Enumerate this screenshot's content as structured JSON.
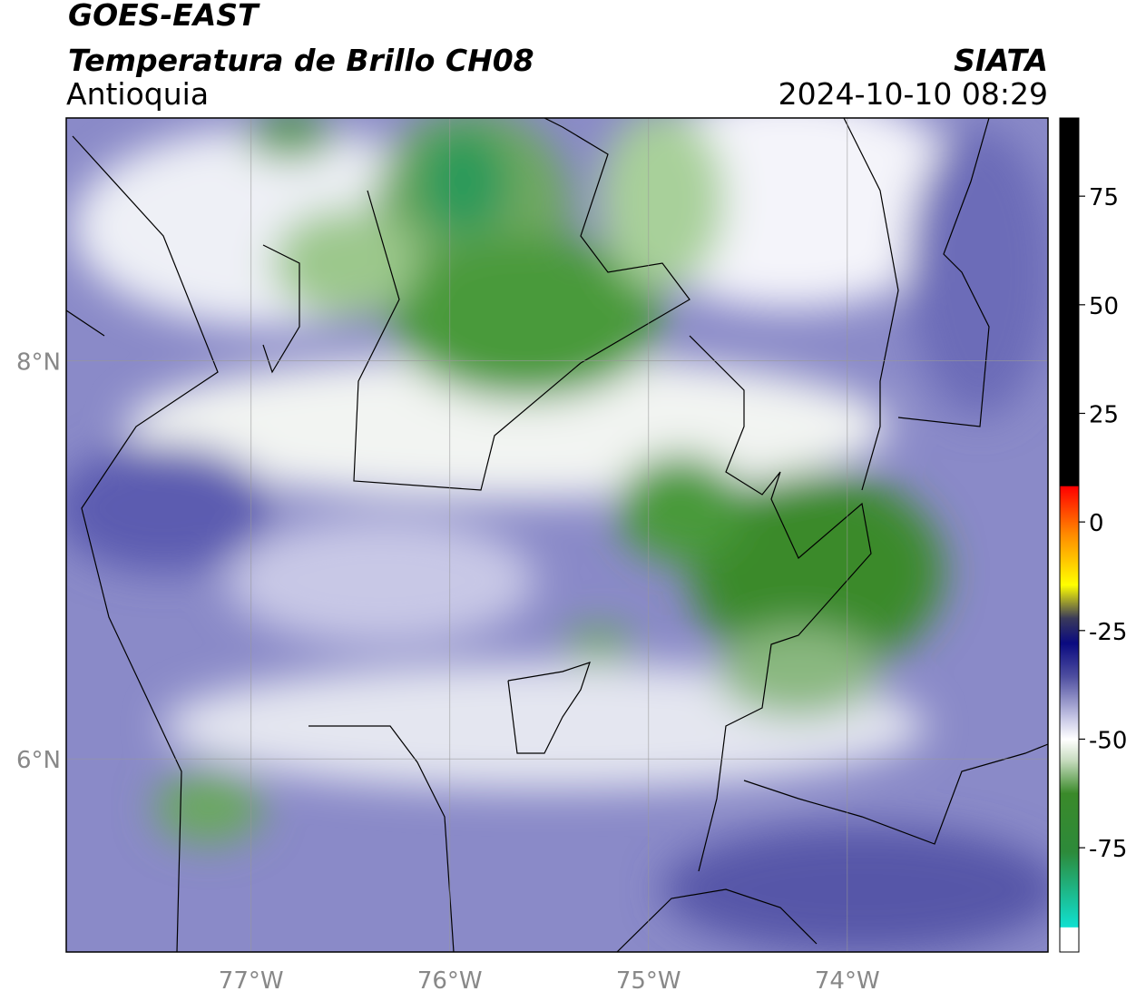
{
  "header": {
    "title": "GOES-EAST",
    "subtitle": "Temperatura de Brillo CH08",
    "region": "Antioquia",
    "source": "SIATA",
    "timestamp": "2024-10-10 08:29"
  },
  "map": {
    "lon_range": [
      -77.93,
      -72.99
    ],
    "lat_range": [
      5.03,
      9.22
    ],
    "lat_ticks": [
      {
        "value": 8,
        "label": "8°N"
      },
      {
        "value": 6,
        "label": "6°N"
      }
    ],
    "lon_ticks": [
      {
        "value": -77,
        "label": "77°W"
      },
      {
        "value": -76,
        "label": "76°W"
      },
      {
        "value": -75,
        "label": "75°W"
      },
      {
        "value": -74,
        "label": "74°W"
      }
    ]
  },
  "colorbar": {
    "range": [
      -99,
      93
    ],
    "ticks": [
      75,
      50,
      25,
      0,
      -25,
      -50,
      -75
    ]
  }
}
